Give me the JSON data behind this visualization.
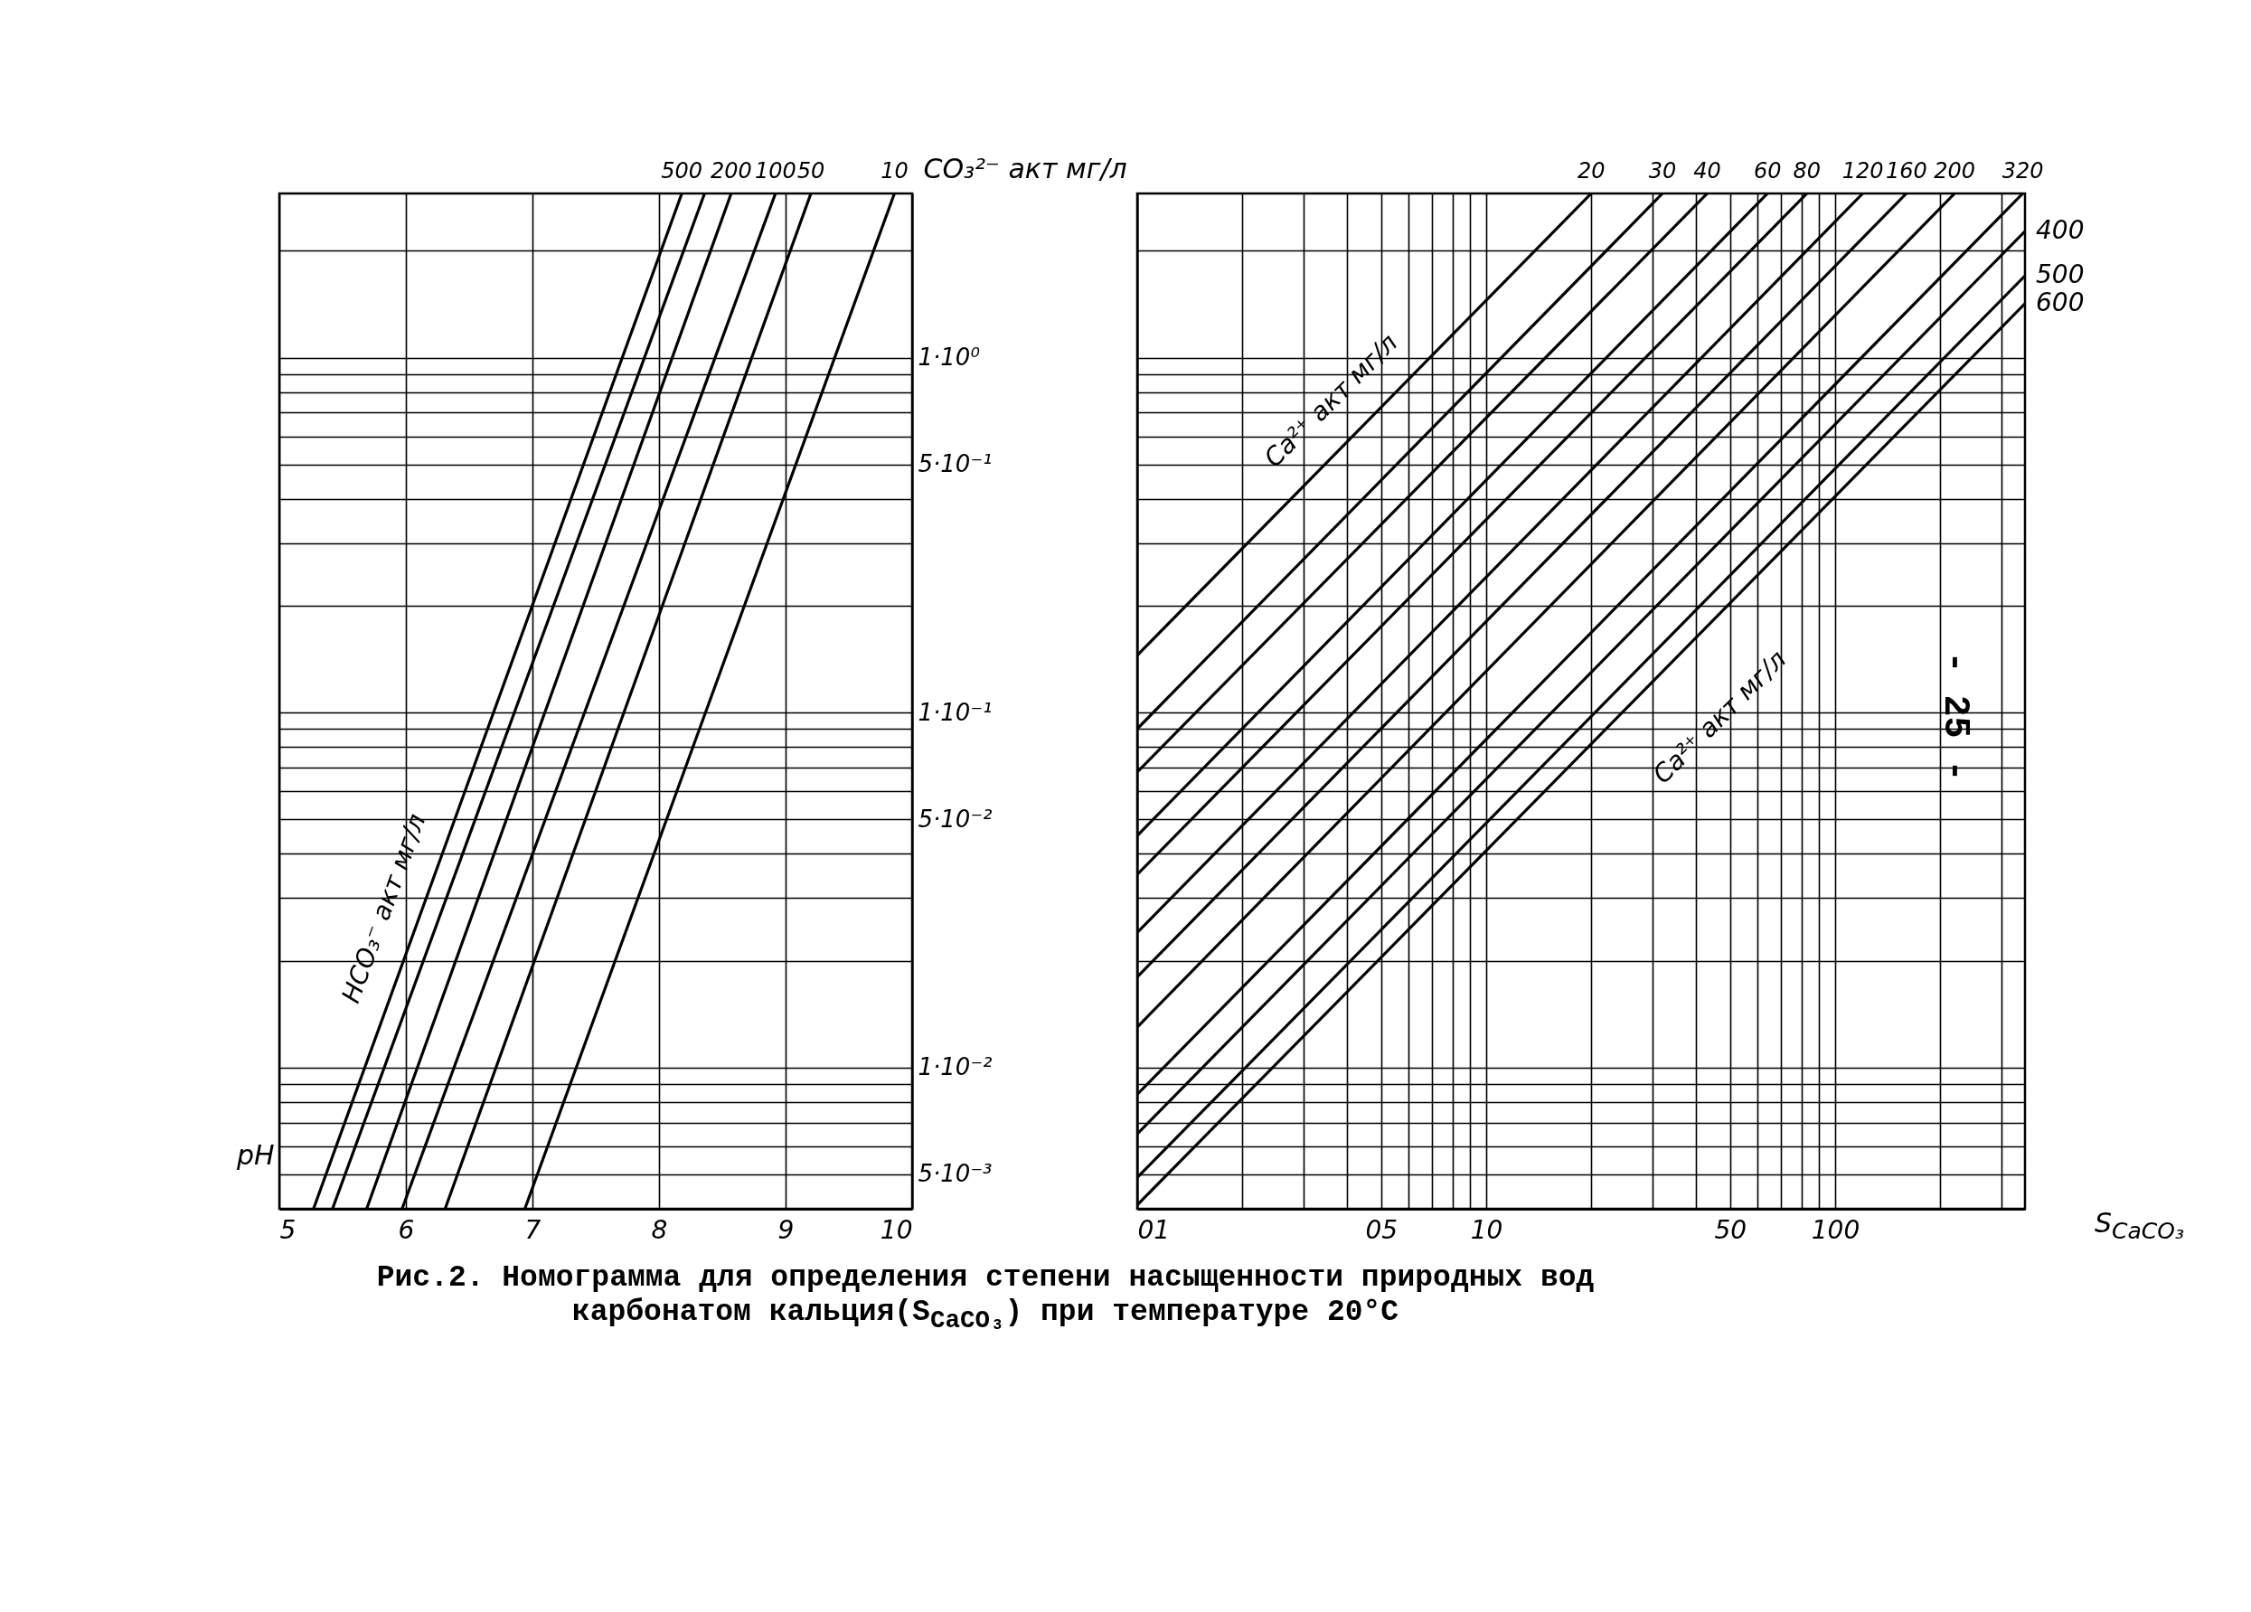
{
  "chart_data": [
    {
      "type": "line",
      "xlabel": "pH",
      "ylabel": "CO₃²⁻ акт мг/л",
      "xlim": [
        5,
        10
      ],
      "xticks": [
        5,
        6,
        7,
        8,
        9,
        10
      ],
      "ylim": [
        0.004,
        2.9
      ],
      "yticks": [
        {
          "value": 2,
          "label": null
        },
        {
          "value": 1,
          "label": "1·10⁰"
        },
        {
          "value": 0.9,
          "label": null
        },
        {
          "value": 0.8,
          "label": null
        },
        {
          "value": 0.7,
          "label": null
        },
        {
          "value": 0.6,
          "label": null
        },
        {
          "value": 0.5,
          "label": "5·10⁻¹"
        },
        {
          "value": 0.4,
          "label": null
        },
        {
          "value": 0.3,
          "label": null
        },
        {
          "value": 0.2,
          "label": null
        },
        {
          "value": 0.1,
          "label": "1·10⁻¹"
        },
        {
          "value": 0.09,
          "label": null
        },
        {
          "value": 0.08,
          "label": null
        },
        {
          "value": 0.07,
          "label": null
        },
        {
          "value": 0.06,
          "label": null
        },
        {
          "value": 0.05,
          "label": "5·10⁻²"
        },
        {
          "value": 0.04,
          "label": null
        },
        {
          "value": 0.03,
          "label": null
        },
        {
          "value": 0.02,
          "label": null
        },
        {
          "value": 0.01,
          "label": "1·10⁻²"
        },
        {
          "value": 0.009,
          "label": null
        },
        {
          "value": 0.008,
          "label": null
        },
        {
          "value": 0.007,
          "label": null
        },
        {
          "value": 0.006,
          "label": null
        },
        {
          "value": 0.005,
          "label": "5·10⁻³"
        }
      ],
      "log": "y",
      "grid": true,
      "annotations": [
        "HCO₃⁻ акт мг/л"
      ],
      "series": [
        {
          "name": "500",
          "color": "#000000",
          "x": [
            5.27,
            8.18
          ],
          "values": [
            0.004,
            2.9
          ]
        },
        {
          "color": "#000000",
          "x": [
            5.42,
            8.36
          ],
          "values": [
            0.004,
            2.9
          ]
        },
        {
          "name": "200",
          "color": "#000000",
          "x": [
            5.69,
            8.57
          ],
          "values": [
            0.004,
            2.9
          ]
        },
        {
          "name": "100",
          "color": "#000000",
          "x": [
            5.97,
            8.92
          ],
          "values": [
            0.004,
            2.9
          ]
        },
        {
          "name": "50",
          "color": "#000000",
          "x": [
            6.31,
            9.2
          ],
          "values": [
            0.004,
            2.9
          ]
        },
        {
          "name": "10",
          "color": "#000000",
          "x": [
            6.94,
            9.86
          ],
          "values": [
            0.004,
            2.9
          ]
        }
      ]
    },
    {
      "type": "line",
      "xlabel": "S$_{CaCO₃}$",
      "xlim": [
        1,
        350
      ],
      "xticks": [
        {
          "value": 1,
          "label": "01"
        },
        {
          "value": 2,
          "label": null
        },
        {
          "value": 3,
          "label": null
        },
        {
          "value": 4,
          "label": null
        },
        {
          "value": 5,
          "label": "05"
        },
        {
          "value": 6,
          "label": null
        },
        {
          "value": 7,
          "label": null
        },
        {
          "value": 8,
          "label": null
        },
        {
          "value": 9,
          "label": null
        },
        10,
        {
          "value": 20,
          "label": null
        },
        {
          "value": 30,
          "label": null
        },
        {
          "value": 40,
          "label": null
        },
        50,
        {
          "value": 60,
          "label": null
        },
        {
          "value": 70,
          "label": null
        },
        {
          "value": 80,
          "label": null
        },
        {
          "value": 90,
          "label": null
        },
        100,
        {
          "value": 200,
          "label": null
        },
        {
          "value": 300,
          "label": null
        }
      ],
      "ylim": [
        0.004,
        2.9
      ],
      "yticks": [
        2,
        1,
        0.9,
        0.8,
        0.7,
        0.6,
        0.5,
        0.4,
        0.3,
        0.2,
        0.1,
        0.09,
        0.08,
        0.07,
        0.06,
        0.05,
        0.04,
        0.03,
        0.02,
        0.01,
        0.009,
        0.008,
        0.007,
        0.006,
        0.005
      ],
      "log": "xy",
      "grid": true,
      "tick_labels": "x",
      "annotations": [
        "Ca²⁺ акт мг/л",
        "Ca²⁺ акт мг/л",
        "Рис.2. Номограмма для определения степени насыщенности природных вод карбонатом кальция(S$_{CaCO₃}$) при температуре 20°C",
        "- 25 -"
      ],
      "series": [
        {
          "name": "20",
          "color": "#000000",
          "x": [
            1,
            20
          ],
          "values": [
            0.145,
            2.9
          ]
        },
        {
          "name": "30",
          "color": "#000000",
          "x": [
            1,
            32
          ],
          "values": [
            0.09,
            2.9
          ]
        },
        {
          "name": "40",
          "color": "#000000",
          "x": [
            1,
            43
          ],
          "values": [
            0.068,
            2.9
          ]
        },
        {
          "name": "60",
          "color": "#000000",
          "x": [
            1,
            64
          ],
          "values": [
            0.045,
            2.9
          ]
        },
        {
          "name": "80",
          "color": "#000000",
          "x": [
            1,
            83
          ],
          "values": [
            0.035,
            2.9
          ]
        },
        {
          "name": "120",
          "color": "#000000",
          "x": [
            1,
            120
          ],
          "values": [
            0.024,
            2.9
          ]
        },
        {
          "name": "160",
          "color": "#000000",
          "x": [
            1,
            160
          ],
          "values": [
            0.018,
            2.9
          ]
        },
        {
          "name": "200",
          "color": "#000000",
          "x": [
            1,
            220
          ],
          "values": [
            0.013,
            2.9
          ]
        },
        {
          "name": "320",
          "color": "#000000",
          "x": [
            1,
            345
          ],
          "values": [
            0.0084,
            2.9
          ]
        },
        {
          "name": "400",
          "color": "#000000",
          "x": [
            1,
            350
          ],
          "values": [
            0.0065,
            2.27
          ]
        },
        {
          "name": "500",
          "color": "#000000",
          "x": [
            1,
            350
          ],
          "values": [
            0.0049,
            1.7
          ]
        },
        {
          "name": "600",
          "color": "#000000",
          "x": [
            1,
            350
          ],
          "values": [
            0.0041,
            1.42
          ]
        }
      ]
    }
  ]
}
